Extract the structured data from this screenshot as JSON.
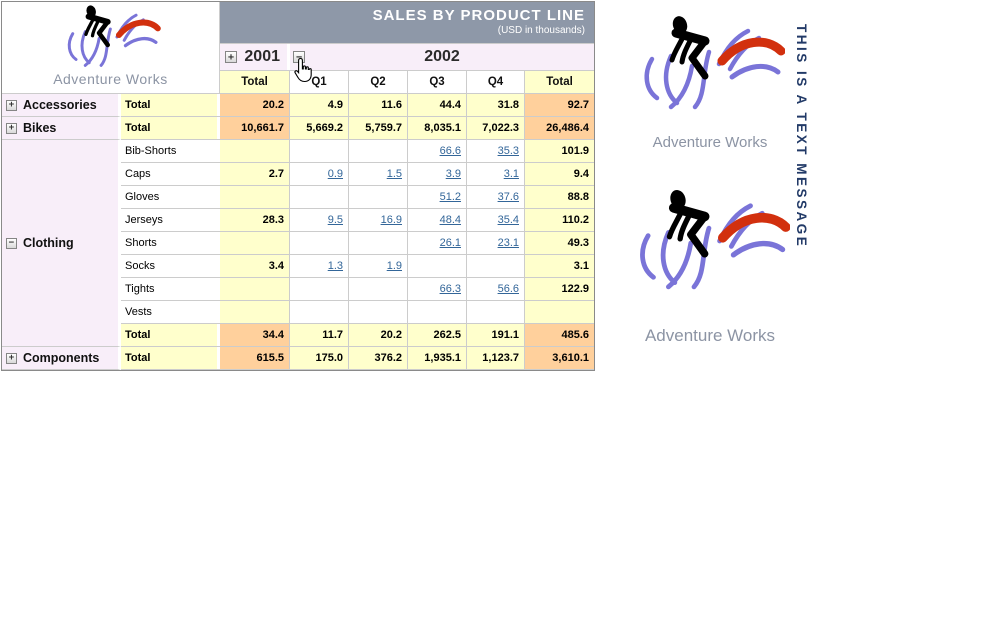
{
  "report": {
    "title": "SALES BY PRODUCT LINE",
    "subtitle": "(USD in thousands)",
    "logo_text": "Adventure Works",
    "years": [
      {
        "label": "2001",
        "toggle": "plus"
      },
      {
        "label": "2002",
        "toggle": "minus"
      }
    ],
    "column_headers": [
      "Total",
      "Q1",
      "Q2",
      "Q3",
      "Q4",
      "Total"
    ],
    "categories": [
      {
        "label": "Accessories",
        "toggle": "plus",
        "span": 1
      },
      {
        "label": "Bikes",
        "toggle": "plus",
        "span": 1
      },
      {
        "label": "Clothing",
        "toggle": "minus",
        "span": 9
      },
      {
        "label": "Components",
        "toggle": "plus",
        "span": 1
      }
    ],
    "rows": [
      {
        "label": "Total",
        "kind": "total",
        "cells": [
          {
            "v": "20.2"
          },
          {
            "v": "4.9"
          },
          {
            "v": "11.6"
          },
          {
            "v": "44.4"
          },
          {
            "v": "31.8"
          },
          {
            "v": "92.7"
          }
        ]
      },
      {
        "label": "Total",
        "kind": "total",
        "cells": [
          {
            "v": "10,661.7"
          },
          {
            "v": "5,669.2"
          },
          {
            "v": "5,759.7"
          },
          {
            "v": "8,035.1"
          },
          {
            "v": "7,022.3"
          },
          {
            "v": "26,486.4"
          }
        ]
      },
      {
        "label": "Bib-Shorts",
        "kind": "detail",
        "cells": [
          {
            "v": ""
          },
          {
            "v": ""
          },
          {
            "v": ""
          },
          {
            "v": "66.6",
            "link": true
          },
          {
            "v": "35.3",
            "link": true
          },
          {
            "v": "101.9"
          }
        ]
      },
      {
        "label": "Caps",
        "kind": "detail",
        "cells": [
          {
            "v": "2.7"
          },
          {
            "v": "0.9",
            "link": true
          },
          {
            "v": "1.5",
            "link": true
          },
          {
            "v": "3.9",
            "link": true
          },
          {
            "v": "3.1",
            "link": true
          },
          {
            "v": "9.4"
          }
        ]
      },
      {
        "label": "Gloves",
        "kind": "detail",
        "cells": [
          {
            "v": ""
          },
          {
            "v": ""
          },
          {
            "v": ""
          },
          {
            "v": "51.2",
            "link": true
          },
          {
            "v": "37.6",
            "link": true
          },
          {
            "v": "88.8"
          }
        ]
      },
      {
        "label": "Jerseys",
        "kind": "detail",
        "cells": [
          {
            "v": "28.3"
          },
          {
            "v": "9.5",
            "link": true
          },
          {
            "v": "16.9",
            "link": true
          },
          {
            "v": "48.4",
            "link": true
          },
          {
            "v": "35.4",
            "link": true
          },
          {
            "v": "110.2"
          }
        ]
      },
      {
        "label": "Shorts",
        "kind": "detail",
        "cells": [
          {
            "v": ""
          },
          {
            "v": ""
          },
          {
            "v": ""
          },
          {
            "v": "26.1",
            "link": true
          },
          {
            "v": "23.1",
            "link": true
          },
          {
            "v": "49.3"
          }
        ]
      },
      {
        "label": "Socks",
        "kind": "detail",
        "cells": [
          {
            "v": "3.4"
          },
          {
            "v": "1.3",
            "link": true
          },
          {
            "v": "1.9",
            "link": true
          },
          {
            "v": ""
          },
          {
            "v": ""
          },
          {
            "v": "3.1"
          }
        ]
      },
      {
        "label": "Tights",
        "kind": "detail",
        "cells": [
          {
            "v": ""
          },
          {
            "v": ""
          },
          {
            "v": ""
          },
          {
            "v": "66.3",
            "link": true
          },
          {
            "v": "56.6",
            "link": true
          },
          {
            "v": "122.9"
          }
        ]
      },
      {
        "label": "Vests",
        "kind": "detail",
        "cells": [
          {
            "v": ""
          },
          {
            "v": ""
          },
          {
            "v": ""
          },
          {
            "v": ""
          },
          {
            "v": ""
          },
          {
            "v": ""
          }
        ]
      },
      {
        "label": "Total",
        "kind": "total",
        "cells": [
          {
            "v": "34.4"
          },
          {
            "v": "11.7"
          },
          {
            "v": "20.2"
          },
          {
            "v": "262.5"
          },
          {
            "v": "191.1"
          },
          {
            "v": "485.6"
          }
        ]
      },
      {
        "label": "Total",
        "kind": "total",
        "cells": [
          {
            "v": "615.5"
          },
          {
            "v": "175.0"
          },
          {
            "v": "376.2"
          },
          {
            "v": "1,935.1"
          },
          {
            "v": "1,123.7"
          },
          {
            "v": "3,610.1"
          }
        ]
      }
    ]
  },
  "side": {
    "logo_text": "Adventure Works",
    "vertical_text": "THIS IS A TEXT MESSAGE"
  },
  "colors": {
    "header_band": "#8E98A8",
    "total_orange": "#FFD09C",
    "total_yellow": "#FFFFCC",
    "group_pink": "#F8EEF9",
    "link_blue": "#336699"
  }
}
